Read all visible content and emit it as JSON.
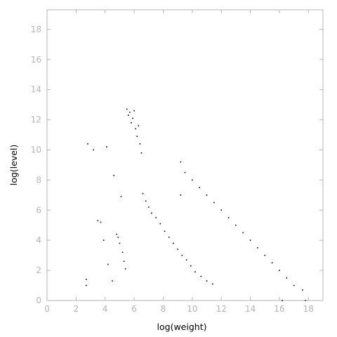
{
  "chart_data": {
    "type": "scatter",
    "xlabel": "log(weight)",
    "ylabel": "log(level)",
    "xlim": [
      0,
      19
    ],
    "ylim": [
      0,
      19.3
    ],
    "xticks": [
      0,
      2,
      4,
      6,
      8,
      10,
      12,
      14,
      16,
      18
    ],
    "yticks": [
      0,
      2,
      4,
      6,
      8,
      10,
      12,
      14,
      16,
      18
    ],
    "grid": false,
    "legend": "none",
    "marker_color": "#000000",
    "axis_color": "#b4b4b4",
    "series": [
      {
        "values": [
          [
            2.7,
            1.4
          ],
          [
            2.7,
            1.0
          ],
          [
            2.8,
            10.4
          ],
          [
            3.2,
            10.0
          ],
          [
            3.5,
            5.3
          ],
          [
            3.7,
            5.2
          ],
          [
            3.9,
            4.0
          ],
          [
            4.1,
            10.2
          ],
          [
            4.2,
            2.4
          ],
          [
            4.5,
            1.3
          ],
          [
            4.6,
            8.3
          ],
          [
            4.8,
            4.4
          ],
          [
            4.9,
            4.2
          ],
          [
            5.0,
            3.8
          ],
          [
            5.1,
            6.9
          ],
          [
            5.2,
            3.2
          ],
          [
            5.3,
            2.6
          ],
          [
            5.4,
            2.1
          ],
          [
            5.5,
            12.7
          ],
          [
            5.6,
            12.3
          ],
          [
            5.7,
            12.5
          ],
          [
            5.8,
            11.8
          ],
          [
            5.9,
            12.1
          ],
          [
            6.0,
            12.6
          ],
          [
            6.1,
            11.4
          ],
          [
            6.2,
            10.9
          ],
          [
            6.3,
            11.6
          ],
          [
            6.4,
            10.4
          ],
          [
            6.5,
            9.8
          ],
          [
            6.6,
            7.1
          ],
          [
            6.8,
            6.6
          ],
          [
            7.0,
            6.2
          ],
          [
            7.2,
            5.8
          ],
          [
            7.5,
            5.5
          ],
          [
            7.8,
            5.1
          ],
          [
            8.1,
            4.6
          ],
          [
            8.4,
            4.2
          ],
          [
            8.7,
            3.8
          ],
          [
            9.0,
            3.4
          ],
          [
            9.3,
            3.0
          ],
          [
            9.6,
            2.7
          ],
          [
            9.9,
            2.3
          ],
          [
            10.2,
            1.9
          ],
          [
            10.6,
            1.6
          ],
          [
            11.0,
            1.3
          ],
          [
            11.4,
            1.1
          ],
          [
            9.2,
            9.2
          ],
          [
            9.2,
            7.0
          ],
          [
            9.5,
            8.5
          ],
          [
            10.0,
            8.0
          ],
          [
            10.5,
            7.5
          ],
          [
            11.0,
            7.0
          ],
          [
            11.5,
            6.5
          ],
          [
            12.0,
            6.0
          ],
          [
            12.5,
            5.5
          ],
          [
            13.0,
            5.0
          ],
          [
            13.5,
            4.5
          ],
          [
            14.0,
            4.0
          ],
          [
            14.5,
            3.5
          ],
          [
            15.0,
            3.0
          ],
          [
            15.5,
            2.5
          ],
          [
            16.0,
            2.0
          ],
          [
            16.5,
            1.5
          ],
          [
            17.0,
            1.0
          ],
          [
            17.6,
            0.7
          ],
          [
            16.2,
            0.0
          ],
          [
            17.8,
            0.0
          ]
        ]
      }
    ]
  }
}
